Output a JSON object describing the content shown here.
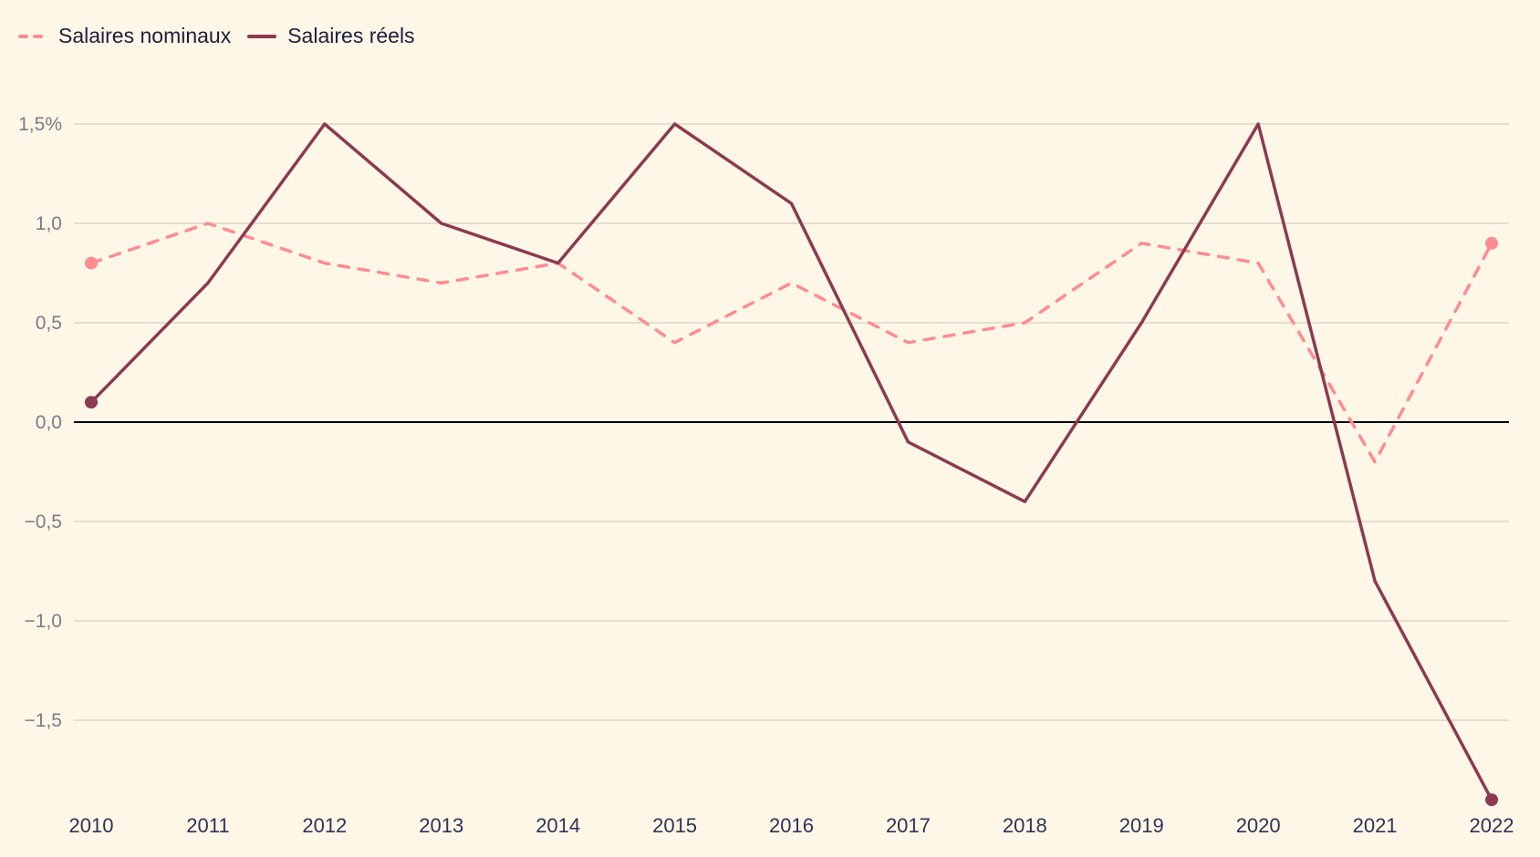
{
  "legend": {
    "items": [
      {
        "label": "Salaires nominaux",
        "style": "dashed",
        "color": "#FF8C90"
      },
      {
        "label": "Salaires réels",
        "style": "solid",
        "color": "#8C3A50"
      }
    ]
  },
  "colors": {
    "background": "#FEF7E7",
    "grid": "#DCD6C8",
    "zero_line": "#000000",
    "nominal": "#FF8C90",
    "real": "#8C3A50",
    "ytick_text": "#7E7A86",
    "xtick_text": "#2E3356"
  },
  "chart_data": {
    "type": "line",
    "title": "",
    "xlabel": "",
    "ylabel": "",
    "x": [
      "2010",
      "2011",
      "2012",
      "2013",
      "2014",
      "2015",
      "2016",
      "2017",
      "2018",
      "2019",
      "2020",
      "2021",
      "2022"
    ],
    "ylim": [
      -2.0,
      1.75
    ],
    "yticks": [
      1.5,
      1.0,
      0.5,
      0.0,
      -0.5,
      -1.0,
      -1.5
    ],
    "ytick_labels": [
      "1,5%",
      "1,0",
      "0,5",
      "0,0",
      "−0,5",
      "−1,0",
      "−1,5"
    ],
    "grid": true,
    "legend_position": "top-left",
    "series": [
      {
        "name": "Salaires nominaux",
        "style": "dashed",
        "values": [
          0.8,
          1.0,
          0.8,
          0.7,
          0.8,
          0.4,
          0.7,
          0.4,
          0.5,
          0.9,
          0.8,
          -0.2,
          0.9
        ],
        "endpoint_markers": true
      },
      {
        "name": "Salaires réels",
        "style": "solid",
        "values": [
          0.1,
          0.7,
          1.5,
          1.0,
          0.8,
          1.5,
          1.1,
          -0.1,
          -0.4,
          0.5,
          1.5,
          -0.8,
          -1.9
        ],
        "endpoint_markers": true
      }
    ]
  }
}
